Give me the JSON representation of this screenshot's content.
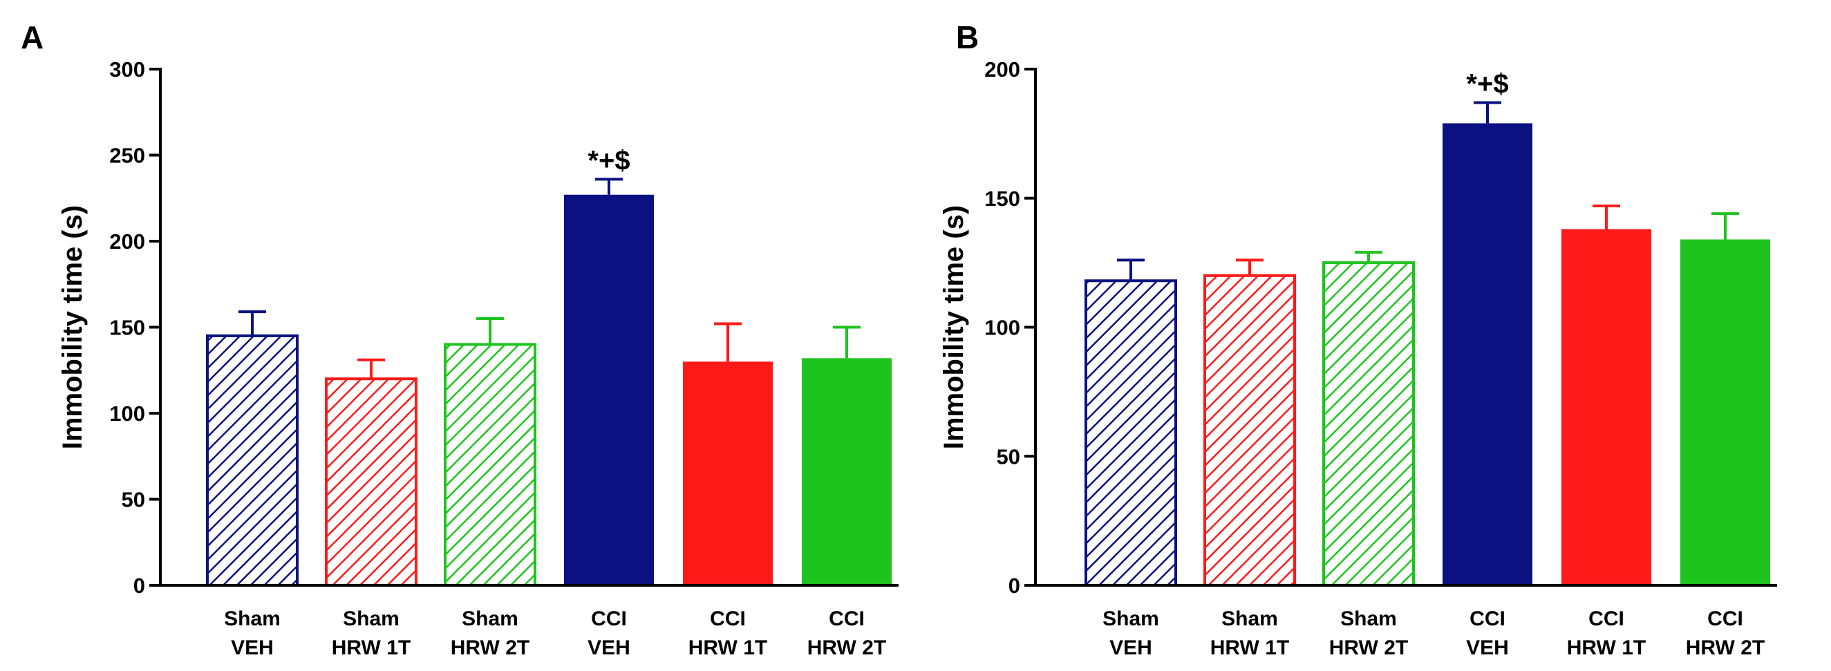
{
  "figure": {
    "colors": {
      "navy": "#0b1180",
      "red": "#ff1a1a",
      "green": "#1ec41e",
      "axis": "#000000"
    }
  },
  "chart_data": [
    {
      "type": "bar",
      "panel_label": "A",
      "ylabel": "Immobility time (s)",
      "ylim": [
        0,
        300
      ],
      "yticks": [
        0,
        50,
        100,
        150,
        200,
        250,
        300
      ],
      "categories": [
        {
          "line1": "Sham",
          "line2": "VEH"
        },
        {
          "line1": "Sham",
          "line2": "HRW 1T"
        },
        {
          "line1": "Sham",
          "line2": "HRW 2T"
        },
        {
          "line1": "CCI",
          "line2": "VEH"
        },
        {
          "line1": "CCI",
          "line2": "HRW 1T"
        },
        {
          "line1": "CCI",
          "line2": "HRW 2T"
        }
      ],
      "values": [
        145,
        120,
        140,
        227,
        130,
        132
      ],
      "errors": [
        14,
        11,
        15,
        9,
        22,
        18
      ],
      "styles": [
        "hatch",
        "hatch",
        "hatch",
        "solid",
        "solid",
        "solid"
      ],
      "colors": [
        "navy",
        "red",
        "green",
        "navy",
        "red",
        "green"
      ],
      "significance": {
        "index": 3,
        "label": "*+$"
      }
    },
    {
      "type": "bar",
      "panel_label": "B",
      "ylabel": "Immobility time (s)",
      "ylim": [
        0,
        200
      ],
      "yticks": [
        0,
        50,
        100,
        150,
        200
      ],
      "categories": [
        {
          "line1": "Sham",
          "line2": "VEH"
        },
        {
          "line1": "Sham",
          "line2": "HRW 1T"
        },
        {
          "line1": "Sham",
          "line2": "HRW 2T"
        },
        {
          "line1": "CCI",
          "line2": "VEH"
        },
        {
          "line1": "CCI",
          "line2": "HRW 1T"
        },
        {
          "line1": "CCI",
          "line2": "HRW 2T"
        }
      ],
      "values": [
        118,
        120,
        125,
        179,
        138,
        134
      ],
      "errors": [
        8,
        6,
        4,
        8,
        9,
        10
      ],
      "styles": [
        "hatch",
        "hatch",
        "hatch",
        "solid",
        "solid",
        "solid"
      ],
      "colors": [
        "navy",
        "red",
        "green",
        "navy",
        "red",
        "green"
      ],
      "significance": {
        "index": 3,
        "label": "*+$"
      }
    }
  ]
}
